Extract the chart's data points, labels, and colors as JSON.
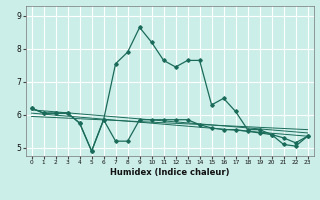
{
  "xlabel": "Humidex (Indice chaleur)",
  "ylabel": "",
  "bg_color": "#cceee8",
  "grid_color": "#ffffff",
  "line_color": "#1a6b5a",
  "xlim": [
    -0.5,
    23.5
  ],
  "ylim": [
    4.75,
    9.3
  ],
  "xticks": [
    0,
    1,
    2,
    3,
    4,
    5,
    6,
    7,
    8,
    9,
    10,
    11,
    12,
    13,
    14,
    15,
    16,
    17,
    18,
    19,
    20,
    21,
    22,
    23
  ],
  "yticks": [
    5,
    6,
    7,
    8,
    9
  ],
  "line1_x": [
    0,
    1,
    2,
    3,
    4,
    5,
    6,
    7,
    8,
    9,
    10,
    11,
    12,
    13,
    14,
    15,
    16,
    17,
    18,
    19,
    20,
    21,
    22,
    23
  ],
  "line1_y": [
    6.2,
    6.05,
    6.05,
    6.05,
    5.75,
    4.9,
    5.85,
    5.2,
    5.2,
    5.85,
    5.85,
    5.85,
    5.85,
    5.85,
    5.7,
    5.6,
    5.55,
    5.55,
    5.5,
    5.45,
    5.4,
    5.3,
    5.15,
    5.35
  ],
  "line2_x": [
    0,
    1,
    2,
    3,
    4,
    5,
    6,
    7,
    8,
    9,
    10,
    11,
    12,
    13,
    14,
    15,
    16,
    17,
    18,
    19,
    20,
    21,
    22,
    23
  ],
  "line2_y": [
    6.2,
    6.05,
    6.05,
    6.05,
    5.75,
    4.9,
    5.85,
    7.55,
    7.9,
    8.65,
    8.2,
    7.65,
    7.45,
    7.65,
    7.65,
    6.3,
    6.5,
    6.1,
    5.55,
    5.55,
    5.4,
    5.1,
    5.05,
    5.35
  ],
  "line3_x": [
    0,
    23
  ],
  "line3_y": [
    6.15,
    5.45
  ],
  "line4_x": [
    0,
    23
  ],
  "line4_y": [
    6.05,
    5.35
  ],
  "line5_x": [
    0,
    23
  ],
  "line5_y": [
    5.95,
    5.55
  ]
}
